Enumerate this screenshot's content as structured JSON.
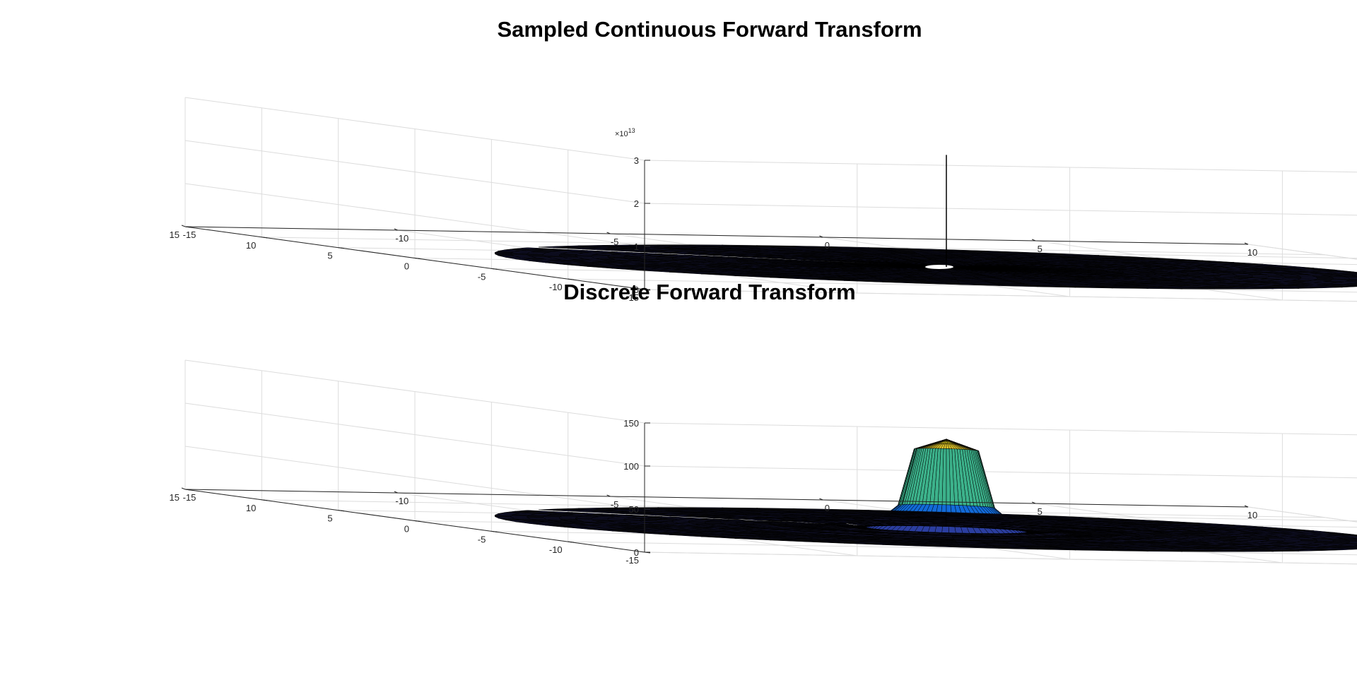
{
  "chart_data": [
    {
      "type": "surface",
      "title": "Sampled Continuous Forward Transform",
      "xlabel": "",
      "ylabel": "",
      "zlabel": "",
      "x_ticks": [
        "-15",
        "-10",
        "-5",
        "0",
        "5",
        "10"
      ],
      "y_ticks": [
        "-15",
        "-10",
        "-5",
        "0",
        "5",
        "10",
        "15"
      ],
      "z_ticks": [
        "0",
        "1",
        "2",
        "3"
      ],
      "z_exponent_base": "×10",
      "z_exponent_power": "13",
      "xlim": [
        -15,
        10
      ],
      "ylim": [
        -15,
        15
      ],
      "zlim": [
        0,
        30000000000000.0
      ],
      "surface": {
        "domain": "disk of radius ~10 centred at origin",
        "baseline": 0,
        "peak_location": [
          0,
          0
        ],
        "peak_value": 26000000000000.0,
        "shape": "narrow spike"
      },
      "colormap": "parula",
      "grid": true
    },
    {
      "type": "surface",
      "title": "Discrete Forward Transform",
      "xlabel": "",
      "ylabel": "",
      "zlabel": "",
      "x_ticks": [
        "-15",
        "-10",
        "-5",
        "0",
        "5",
        "10"
      ],
      "y_ticks": [
        "-15",
        "-10",
        "-5",
        "0",
        "5",
        "10",
        "15"
      ],
      "z_ticks": [
        "0",
        "50",
        "100",
        "150"
      ],
      "xlim": [
        -15,
        10
      ],
      "ylim": [
        -15,
        15
      ],
      "zlim": [
        0,
        150
      ],
      "surface": {
        "domain": "disk of radius ~10 centred at origin",
        "baseline": 0,
        "peak_location": [
          0,
          0
        ],
        "peak_value": 105,
        "shoulder_value": 30,
        "shape": "plateau peak with ringing"
      },
      "colormap": "parula",
      "grid": true
    }
  ]
}
